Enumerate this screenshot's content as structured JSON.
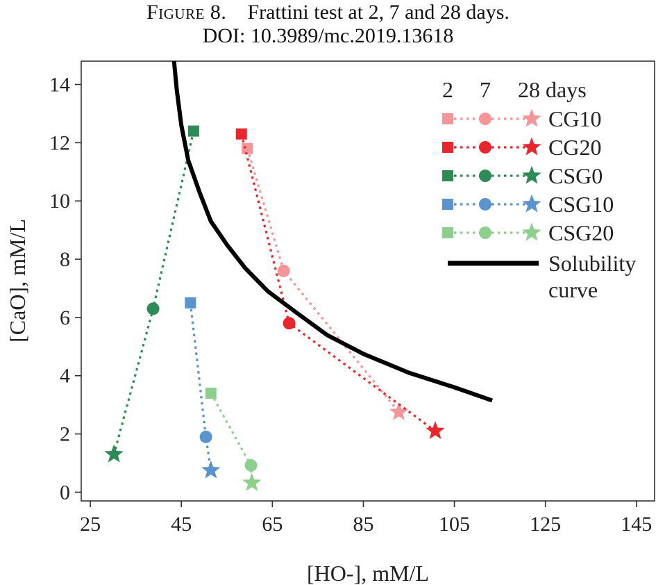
{
  "caption": {
    "figure_label": "Figure 8.",
    "title": "Frattini test at 2, 7 and 28 days.",
    "doi": "DOI: 10.3989/mc.2019.13618"
  },
  "chart_data": {
    "type": "scatter",
    "xlabel": "[HO-], mM/L",
    "ylabel": "[CaO], mM/L",
    "xlim": [
      23,
      149
    ],
    "ylim": [
      -0.3,
      14.8
    ],
    "xticks": [
      25,
      45,
      65,
      85,
      105,
      125,
      145
    ],
    "yticks": [
      0,
      2,
      4,
      6,
      8,
      10,
      12,
      14
    ],
    "grid": false,
    "legend_position": "top-right",
    "legend_header": [
      "2",
      "7",
      "28 days"
    ],
    "ages": [
      "2",
      "7",
      "28"
    ],
    "series": [
      {
        "name": "CG10",
        "color": "#f4959a",
        "points": [
          [
            59.5,
            11.8
          ],
          [
            67.5,
            7.6
          ],
          [
            92.8,
            2.75
          ]
        ]
      },
      {
        "name": "CG20",
        "color": "#e8262d",
        "points": [
          [
            58.2,
            12.3
          ],
          [
            68.7,
            5.8
          ],
          [
            100.8,
            2.1
          ]
        ]
      },
      {
        "name": "CSG0",
        "color": "#2e8b57",
        "points": [
          [
            47.7,
            12.4
          ],
          [
            38.8,
            6.3
          ],
          [
            30.2,
            1.3
          ]
        ]
      },
      {
        "name": "CSG10",
        "color": "#5b93cc",
        "points": [
          [
            47.0,
            6.5
          ],
          [
            50.4,
            1.9
          ],
          [
            51.5,
            0.75
          ]
        ]
      },
      {
        "name": "CSG20",
        "color": "#8ecf8e",
        "points": [
          [
            51.5,
            3.4
          ],
          [
            60.3,
            0.92
          ],
          [
            60.5,
            0.32
          ]
        ]
      }
    ],
    "solubility_curve": {
      "name": "Solubility curve",
      "label_lines": [
        "Solubility",
        "curve"
      ],
      "color": "#000000",
      "points": [
        [
          43.4,
          14.8
        ],
        [
          44.0,
          13.8
        ],
        [
          45.0,
          12.6
        ],
        [
          46.5,
          11.4
        ],
        [
          49.0,
          10.3
        ],
        [
          51.5,
          9.3
        ],
        [
          55.0,
          8.5
        ],
        [
          59.0,
          7.7
        ],
        [
          64.0,
          6.9
        ],
        [
          70.0,
          6.2
        ],
        [
          77.0,
          5.4
        ],
        [
          85.0,
          4.75
        ],
        [
          95.0,
          4.1
        ],
        [
          105.0,
          3.6
        ],
        [
          113.3,
          3.15
        ]
      ]
    }
  }
}
